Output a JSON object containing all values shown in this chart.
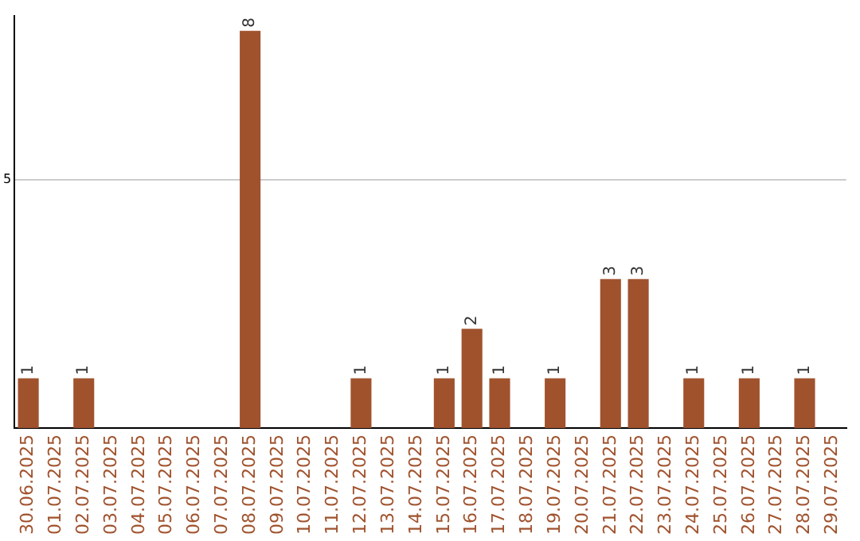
{
  "chart_data": {
    "type": "bar",
    "categories": [
      "30.06.2025",
      "01.07.2025",
      "02.07.2025",
      "03.07.2025",
      "04.07.2025",
      "05.07.2025",
      "06.07.2025",
      "07.07.2025",
      "08.07.2025",
      "09.07.2025",
      "10.07.2025",
      "11.07.2025",
      "12.07.2025",
      "13.07.2025",
      "14.07.2025",
      "15.07.2025",
      "16.07.2025",
      "17.07.2025",
      "18.07.2025",
      "19.07.2025",
      "20.07.2025",
      "21.07.2025",
      "22.07.2025",
      "23.07.2025",
      "24.07.2025",
      "25.07.2025",
      "26.07.2025",
      "27.07.2025",
      "28.07.2025",
      "29.07.2025"
    ],
    "values": [
      1,
      0,
      1,
      0,
      0,
      0,
      0,
      0,
      8,
      0,
      0,
      0,
      1,
      0,
      0,
      1,
      2,
      1,
      0,
      1,
      0,
      3,
      3,
      0,
      1,
      0,
      1,
      0,
      1,
      0
    ],
    "value_labels": [
      "1",
      null,
      "1",
      null,
      null,
      null,
      null,
      null,
      "8",
      null,
      null,
      null,
      "1",
      null,
      null,
      "1",
      "2",
      "1",
      null,
      "1",
      null,
      "3",
      "3",
      null,
      "1",
      null,
      "1",
      null,
      "1",
      null
    ],
    "color": "#a0522d",
    "ylim": [
      0,
      8.3
    ],
    "yticks": [
      5
    ],
    "grid": "y",
    "legend": false
  }
}
